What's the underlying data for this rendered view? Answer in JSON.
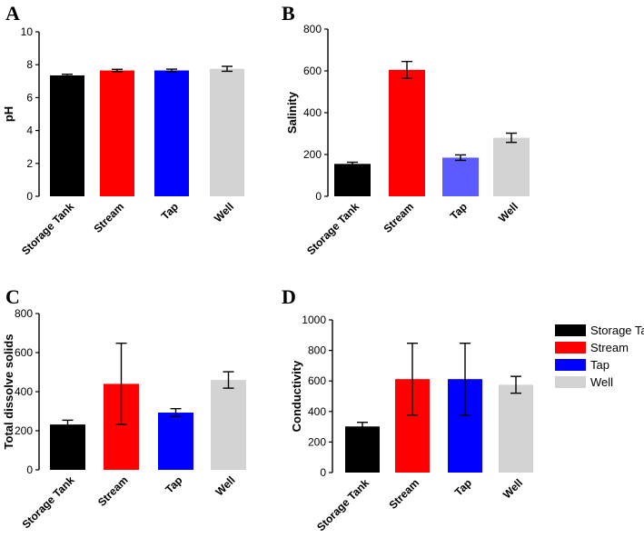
{
  "colors": {
    "storage_tank": "#000000",
    "stream": "#ff0000",
    "tap": "#0000ff",
    "tap_light": "#5b5bff",
    "well": "#d3d3d3"
  },
  "legend": {
    "items": [
      {
        "label": "Storage Tank",
        "color": "#000000"
      },
      {
        "label": "Stream",
        "color": "#ff0000"
      },
      {
        "label": "Tap",
        "color": "#0000ff"
      },
      {
        "label": "Well",
        "color": "#d3d3d3"
      }
    ]
  },
  "chart_data": [
    {
      "panel": "A",
      "type": "bar",
      "ylabel": "pH",
      "xlabel": "",
      "categories": [
        "Storage Tank",
        "Stream",
        "Tap",
        "Well"
      ],
      "values": [
        7.35,
        7.65,
        7.65,
        7.75
      ],
      "errors": [
        0.07,
        0.07,
        0.08,
        0.15
      ],
      "colors": [
        "#000000",
        "#ff0000",
        "#0000ff",
        "#d3d3d3"
      ],
      "ylim": [
        0,
        10
      ],
      "yticks": [
        0,
        2,
        4,
        6,
        8,
        10
      ]
    },
    {
      "panel": "B",
      "type": "bar",
      "ylabel": "Salinity",
      "xlabel": "",
      "categories": [
        "Storage Tank",
        "Stream",
        "Tap",
        "Well"
      ],
      "values": [
        155,
        605,
        185,
        280
      ],
      "errors": [
        8,
        40,
        13,
        22
      ],
      "colors": [
        "#000000",
        "#ff0000",
        "#5b5bff",
        "#d3d3d3"
      ],
      "ylim": [
        0,
        800
      ],
      "yticks": [
        0,
        200,
        400,
        600,
        800
      ]
    },
    {
      "panel": "C",
      "type": "bar",
      "ylabel": "Total dissolve solids",
      "xlabel": "",
      "categories": [
        "Storage Tank",
        "Stream",
        "Tap",
        "Well"
      ],
      "values": [
        232,
        440,
        293,
        460
      ],
      "errors": [
        22,
        208,
        20,
        42
      ],
      "colors": [
        "#000000",
        "#ff0000",
        "#0000ff",
        "#d3d3d3"
      ],
      "ylim": [
        0,
        800
      ],
      "yticks": [
        0,
        200,
        400,
        600,
        800
      ]
    },
    {
      "panel": "D",
      "type": "bar",
      "ylabel": "Conductivity",
      "xlabel": "",
      "categories": [
        "Storage Tank",
        "Stream",
        "Tap",
        "Well"
      ],
      "values": [
        302,
        612,
        612,
        575
      ],
      "errors": [
        27,
        235,
        235,
        55
      ],
      "colors": [
        "#000000",
        "#ff0000",
        "#0000ff",
        "#d3d3d3"
      ],
      "ylim": [
        0,
        1000
      ],
      "yticks": [
        0,
        200,
        400,
        600,
        800,
        1000
      ]
    }
  ]
}
